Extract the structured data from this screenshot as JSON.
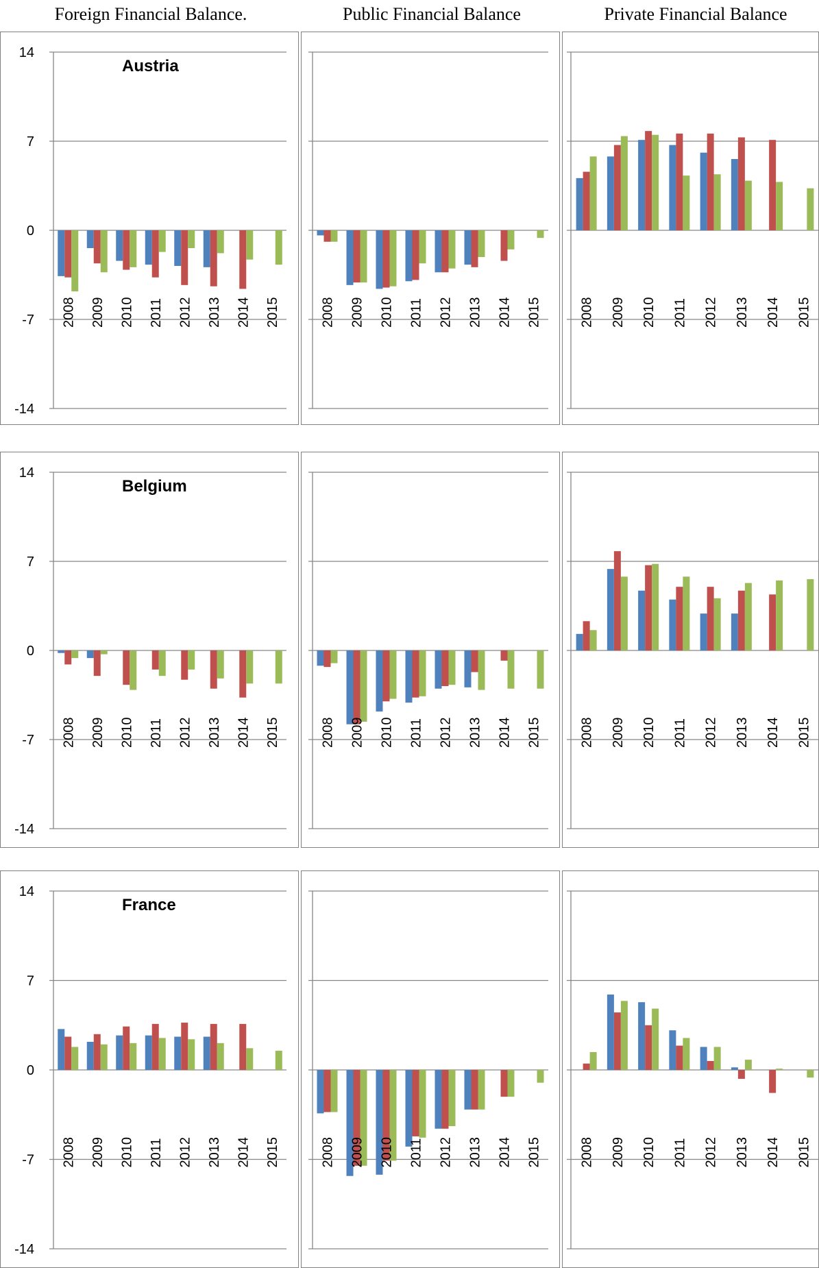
{
  "headers": {
    "foreign": "Foreign Financial Balance.",
    "public": "Public Financial Balance",
    "private": "Private Financial Balance"
  },
  "colors": {
    "series1": "#4F81BD",
    "series2": "#C0504D",
    "series3": "#9BBB59",
    "grid": "#868686",
    "axis": "#868686"
  },
  "chart_data": [
    {
      "type": "bar",
      "country": "Austria",
      "panel": "Foreign Financial Balance.",
      "categories": [
        "2008",
        "2009",
        "2010",
        "2011",
        "2012",
        "2013",
        "2014",
        "2015"
      ],
      "ylim": [
        -14,
        14
      ],
      "yticks": [
        "14",
        "7",
        "0",
        "-7",
        "-14"
      ],
      "series": [
        {
          "values": [
            -3.6,
            -1.4,
            -2.4,
            -2.7,
            -2.8,
            -2.9,
            null,
            null
          ]
        },
        {
          "values": [
            -3.7,
            -2.6,
            -3.1,
            -3.7,
            -4.3,
            -4.4,
            -4.6,
            null
          ]
        },
        {
          "values": [
            -4.8,
            -3.3,
            -2.9,
            -1.7,
            -1.4,
            -1.8,
            -2.3,
            -2.7
          ]
        }
      ]
    },
    {
      "type": "bar",
      "country": "",
      "panel": "Public Financial Balance",
      "categories": [
        "2008",
        "2009",
        "2010",
        "2011",
        "2012",
        "2013",
        "2014",
        "2015"
      ],
      "ylim": [
        -14,
        14
      ],
      "yticks": [
        "",
        "",
        "",
        "",
        ""
      ],
      "series": [
        {
          "values": [
            -0.4,
            -4.3,
            -4.6,
            -4.0,
            -3.3,
            -2.7,
            null,
            null
          ]
        },
        {
          "values": [
            -0.9,
            -4.1,
            -4.5,
            -3.9,
            -3.3,
            -2.9,
            -2.4,
            null
          ]
        },
        {
          "values": [
            -0.9,
            -4.1,
            -4.4,
            -2.6,
            -3.0,
            -2.1,
            -1.5,
            -0.6
          ]
        }
      ]
    },
    {
      "type": "bar",
      "country": "",
      "panel": "Private Financial Balance",
      "categories": [
        "2008",
        "2009",
        "2010",
        "2011",
        "2012",
        "2013",
        "2014",
        "2015"
      ],
      "ylim": [
        -14,
        14
      ],
      "yticks": [
        "",
        "",
        "",
        "",
        ""
      ],
      "series": [
        {
          "values": [
            4.1,
            5.8,
            7.1,
            6.7,
            6.1,
            5.6,
            null,
            null
          ]
        },
        {
          "values": [
            4.6,
            6.7,
            7.8,
            7.6,
            7.6,
            7.3,
            7.1,
            null
          ]
        },
        {
          "values": [
            5.8,
            7.4,
            7.5,
            4.3,
            4.4,
            3.9,
            3.8,
            3.3
          ]
        }
      ]
    },
    {
      "type": "bar",
      "country": "Belgium",
      "panel": "Foreign Financial Balance.",
      "categories": [
        "2008",
        "2009",
        "2010",
        "2011",
        "2012",
        "2013",
        "2014",
        "2015"
      ],
      "ylim": [
        -14,
        14
      ],
      "yticks": [
        "14",
        "7",
        "0",
        "-7",
        "-14"
      ],
      "series": [
        {
          "values": [
            -0.2,
            -0.6,
            null,
            null,
            null,
            null,
            null,
            null
          ]
        },
        {
          "values": [
            -1.1,
            -2.0,
            -2.7,
            -1.5,
            -2.3,
            -3.0,
            -3.7,
            null
          ]
        },
        {
          "values": [
            -0.6,
            -0.3,
            -3.1,
            -2.0,
            -1.5,
            -2.2,
            -2.6,
            -2.6
          ]
        }
      ]
    },
    {
      "type": "bar",
      "country": "",
      "panel": "Public Financial Balance",
      "categories": [
        "2008",
        "2009",
        "2010",
        "2011",
        "2012",
        "2013",
        "2014",
        "2015"
      ],
      "ylim": [
        -14,
        14
      ],
      "yticks": [
        "",
        "",
        "",
        "",
        ""
      ],
      "series": [
        {
          "values": [
            -1.2,
            -5.8,
            -4.8,
            -4.1,
            -3.0,
            -2.9,
            null,
            null
          ]
        },
        {
          "values": [
            -1.3,
            -5.8,
            -4.0,
            -3.7,
            -2.8,
            -1.7,
            -0.8,
            null
          ]
        },
        {
          "values": [
            -1.0,
            -5.6,
            -3.8,
            -3.6,
            -2.7,
            -3.1,
            -3.0,
            -3.0
          ]
        }
      ]
    },
    {
      "type": "bar",
      "country": "",
      "panel": "Private Financial Balance",
      "categories": [
        "2008",
        "2009",
        "2010",
        "2011",
        "2012",
        "2013",
        "2014",
        "2015"
      ],
      "ylim": [
        -14,
        14
      ],
      "yticks": [
        "",
        "",
        "",
        "",
        ""
      ],
      "series": [
        {
          "values": [
            1.3,
            6.4,
            4.7,
            4.0,
            2.9,
            2.9,
            null,
            null
          ]
        },
        {
          "values": [
            2.3,
            7.8,
            6.7,
            5.0,
            5.0,
            4.7,
            4.4,
            null
          ]
        },
        {
          "values": [
            1.6,
            5.8,
            6.8,
            5.8,
            4.1,
            5.3,
            5.5,
            5.6
          ]
        }
      ]
    },
    {
      "type": "bar",
      "country": "France",
      "panel": "Foreign Financial Balance.",
      "categories": [
        "2008",
        "2009",
        "2010",
        "2011",
        "2012",
        "2013",
        "2014",
        "2015"
      ],
      "ylim": [
        -14,
        14
      ],
      "yticks": [
        "14",
        "7",
        "0",
        "-7",
        "-14"
      ],
      "series": [
        {
          "values": [
            3.2,
            2.2,
            2.7,
            2.7,
            2.6,
            2.6,
            null,
            null
          ]
        },
        {
          "values": [
            2.6,
            2.8,
            3.4,
            3.6,
            3.7,
            3.6,
            3.6,
            null
          ]
        },
        {
          "values": [
            1.8,
            2.0,
            2.1,
            2.5,
            2.4,
            2.1,
            1.7,
            1.5
          ]
        }
      ]
    },
    {
      "type": "bar",
      "country": "",
      "panel": "Public Financial Balance",
      "categories": [
        "2008",
        "2009",
        "2010",
        "2011",
        "2012",
        "2013",
        "2014",
        "2015"
      ],
      "ylim": [
        -14,
        14
      ],
      "yticks": [
        "",
        "",
        "",
        "",
        ""
      ],
      "series": [
        {
          "values": [
            -3.4,
            -8.3,
            -8.2,
            -6.0,
            -4.6,
            -3.1,
            null,
            null
          ]
        },
        {
          "values": [
            -3.3,
            -7.5,
            -7.1,
            -5.2,
            -4.6,
            -3.1,
            -2.1,
            null
          ]
        },
        {
          "values": [
            -3.3,
            -7.5,
            -7.1,
            -5.3,
            -4.4,
            -3.1,
            -2.1,
            -1.0
          ]
        }
      ]
    },
    {
      "type": "bar",
      "country": "",
      "panel": "Private Financial Balance",
      "categories": [
        "2008",
        "2009",
        "2010",
        "2011",
        "2012",
        "2013",
        "2014",
        "2015"
      ],
      "ylim": [
        -14,
        14
      ],
      "yticks": [
        "",
        "",
        "",
        "",
        ""
      ],
      "series": [
        {
          "values": [
            null,
            5.9,
            5.3,
            3.1,
            1.8,
            0.2,
            null,
            null
          ]
        },
        {
          "values": [
            0.5,
            4.5,
            3.5,
            1.9,
            0.7,
            -0.7,
            -1.8,
            null
          ]
        },
        {
          "values": [
            1.4,
            5.4,
            4.8,
            2.5,
            1.8,
            0.8,
            0.1,
            -0.6
          ]
        }
      ]
    }
  ]
}
